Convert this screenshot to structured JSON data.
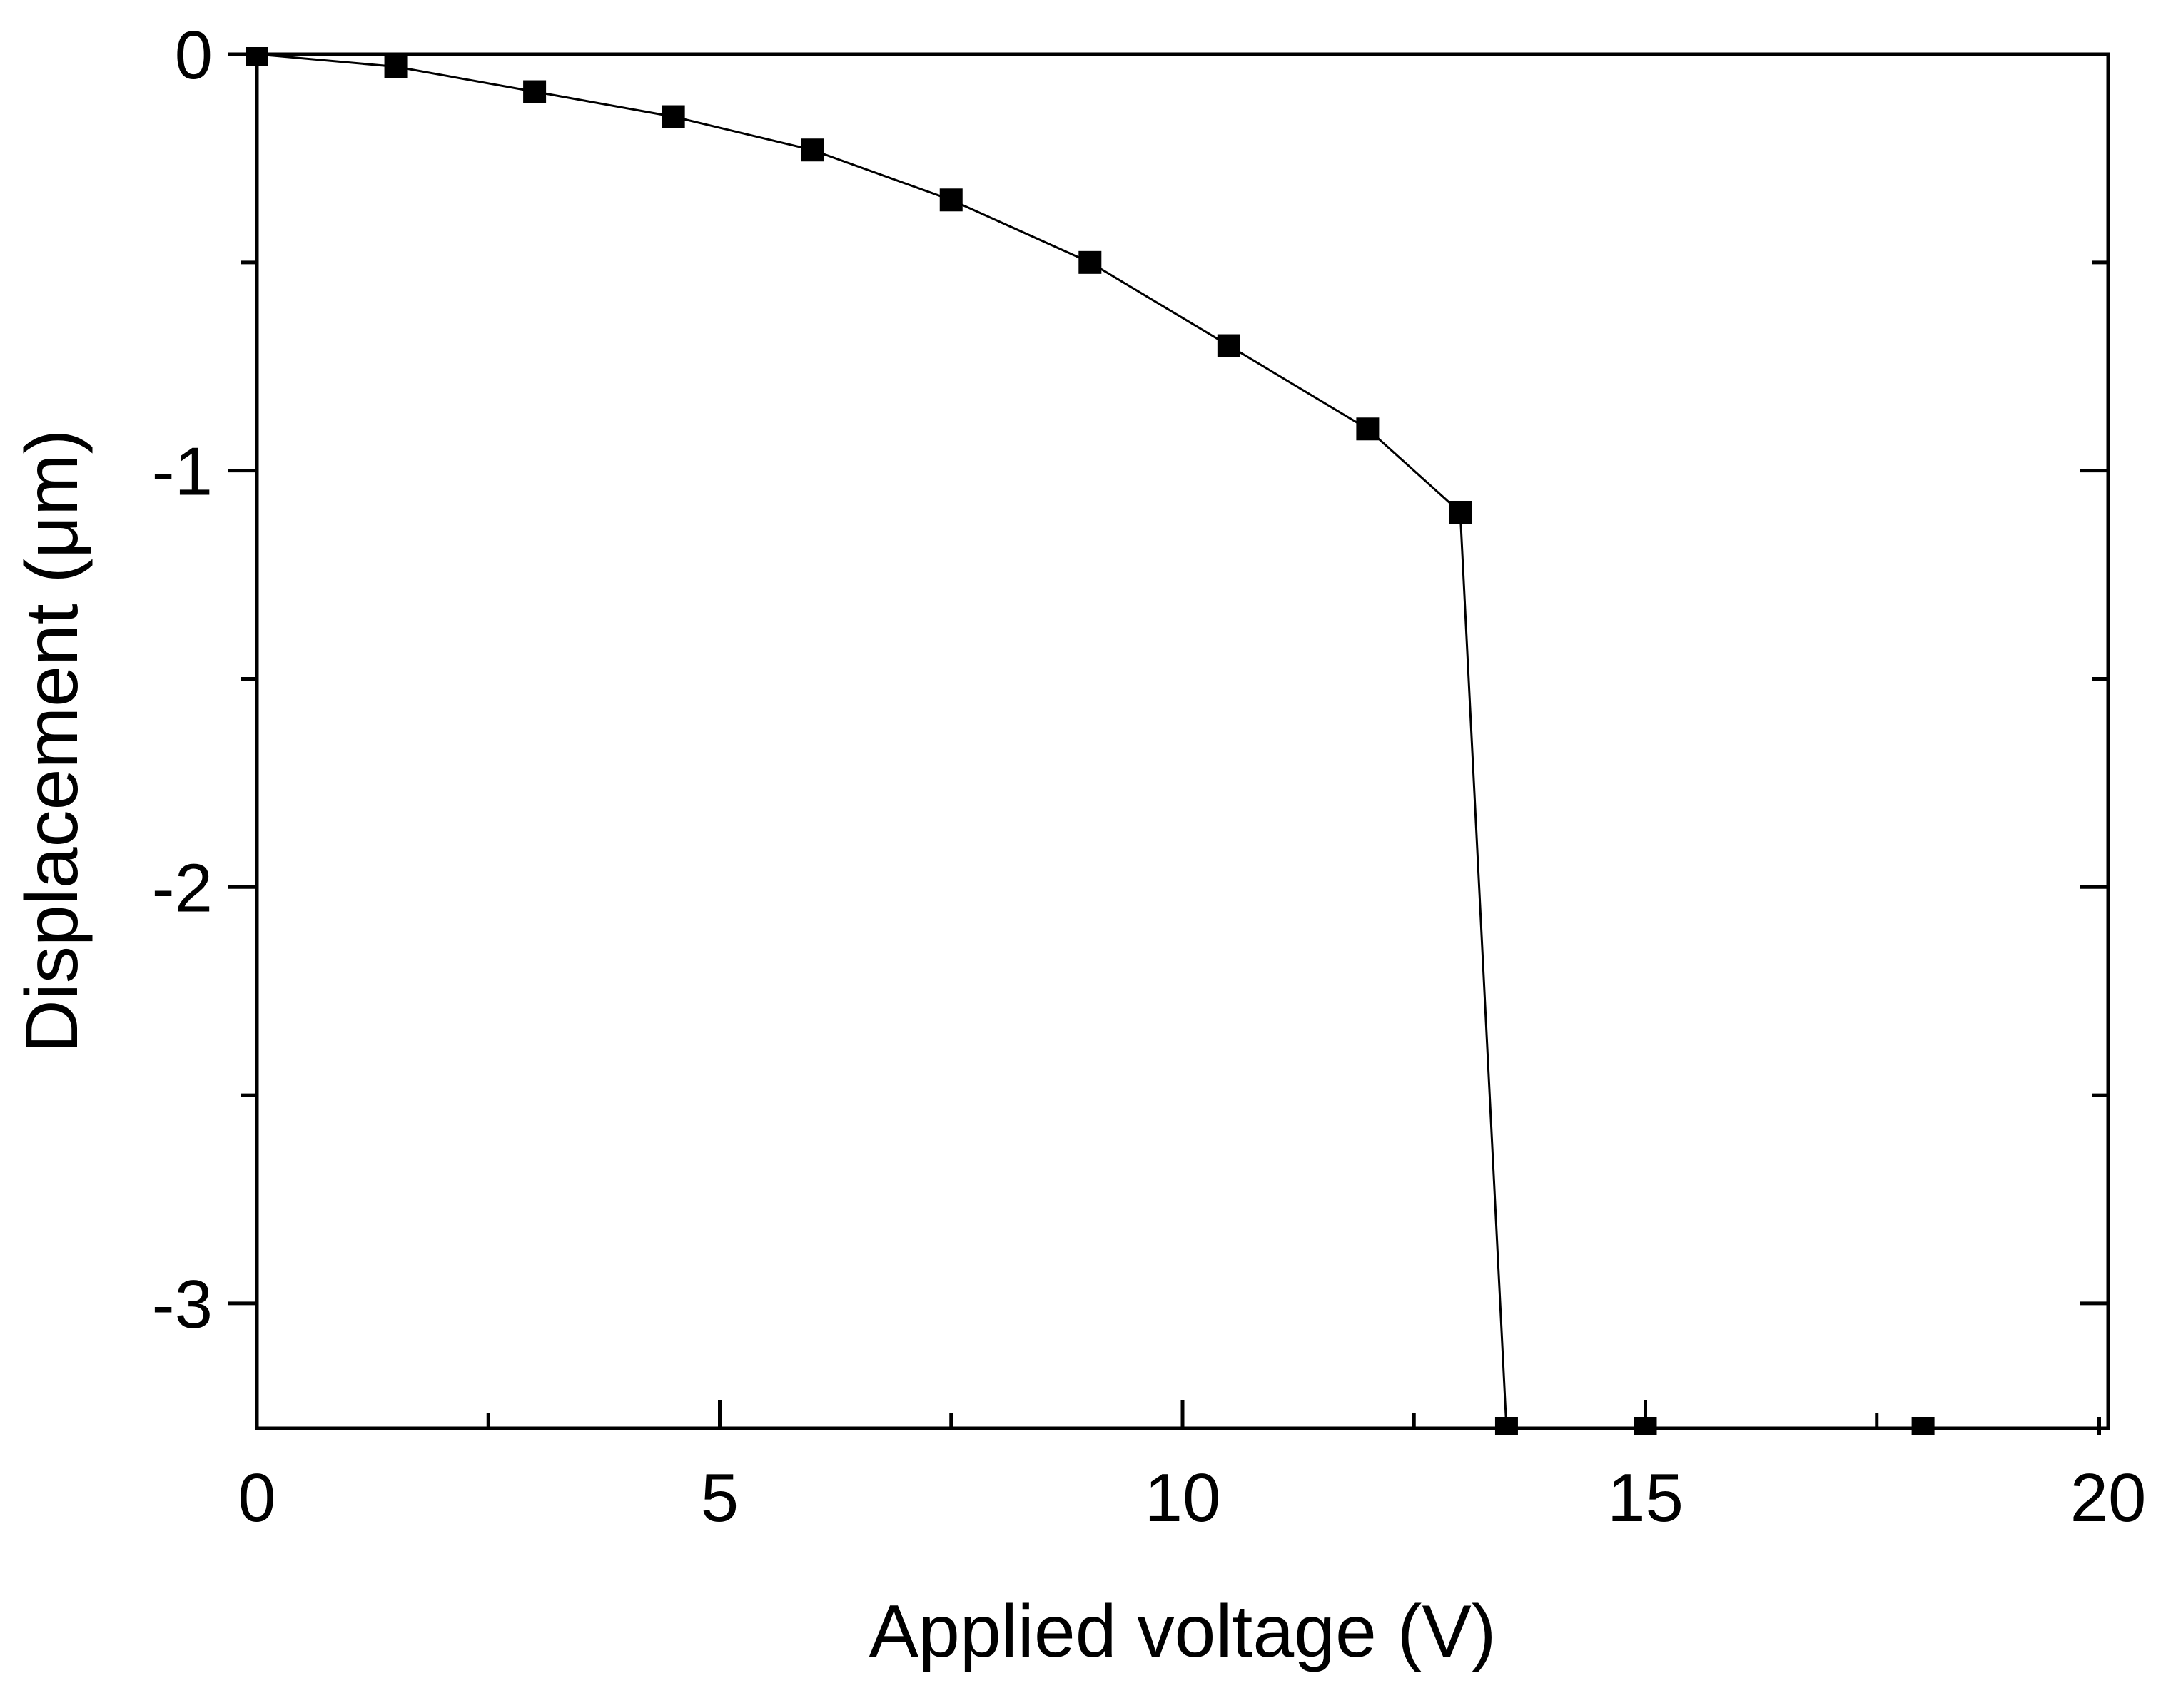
{
  "chart_data": {
    "type": "line",
    "title": "",
    "xlabel": "Applied voltage (V)",
    "ylabel": "Displacement (μm)",
    "xlim": [
      0,
      20
    ],
    "ylim": [
      -3.3,
      0
    ],
    "x_ticks_major": [
      0,
      5,
      10,
      15,
      20
    ],
    "x_ticks_minor": [
      2.5,
      7.5,
      12.5,
      17.5
    ],
    "y_ticks_major": [
      0,
      -1,
      -2,
      -3
    ],
    "y_ticks_minor": [
      -0.5,
      -1.5,
      -2.5
    ],
    "x_tick_labels": [
      "0",
      "5",
      "10",
      "15",
      "20"
    ],
    "y_tick_labels": [
      "0",
      "-1",
      "-2",
      "-3"
    ],
    "grid": false,
    "legend": "none",
    "colors": {
      "line": "#000000",
      "marker": "#000000",
      "axes": "#000000"
    },
    "marker": "square",
    "series": [
      {
        "x": [
          0,
          1.5,
          3,
          4.5,
          6,
          7.5,
          9,
          10.5,
          12,
          13,
          13.5,
          15,
          18,
          20
        ],
        "y": [
          0,
          -0.03,
          -0.09,
          -0.15,
          -0.23,
          -0.35,
          -0.5,
          -0.7,
          -0.9,
          -1.1,
          -3.3,
          -3.3,
          -3.3,
          -3.3
        ]
      }
    ]
  }
}
